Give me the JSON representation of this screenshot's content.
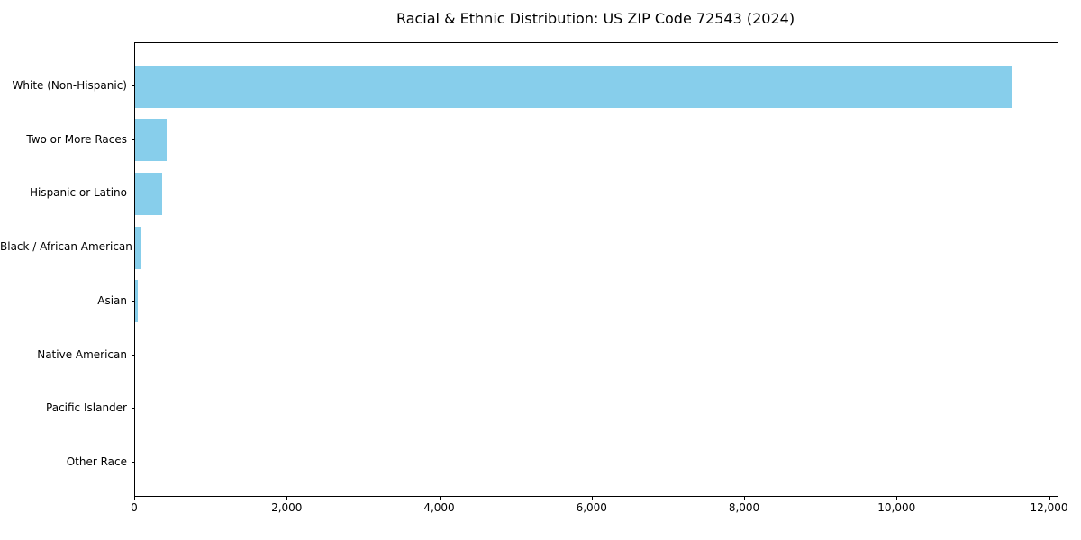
{
  "chart_data": {
    "type": "bar",
    "orientation": "horizontal",
    "title": "Racial & Ethnic Distribution: US ZIP Code 72543 (2024)",
    "categories": [
      "White (Non-Hispanic)",
      "Two or More Races",
      "Hispanic or Latino",
      "Black / African American",
      "Asian",
      "Native American",
      "Pacific Islander",
      "Other Race"
    ],
    "values": [
      11500,
      410,
      350,
      65,
      30,
      0,
      0,
      0
    ],
    "xlabel": "",
    "ylabel": "",
    "xlim": [
      0,
      12100
    ],
    "x_ticks": [
      0,
      2000,
      4000,
      6000,
      8000,
      10000,
      12000
    ],
    "x_tick_labels": [
      "0",
      "2,000",
      "4,000",
      "6,000",
      "8,000",
      "10,000",
      "12,000"
    ],
    "bar_color": "#87CEEB",
    "text_color": "#000000",
    "grid": false,
    "legend": null
  }
}
